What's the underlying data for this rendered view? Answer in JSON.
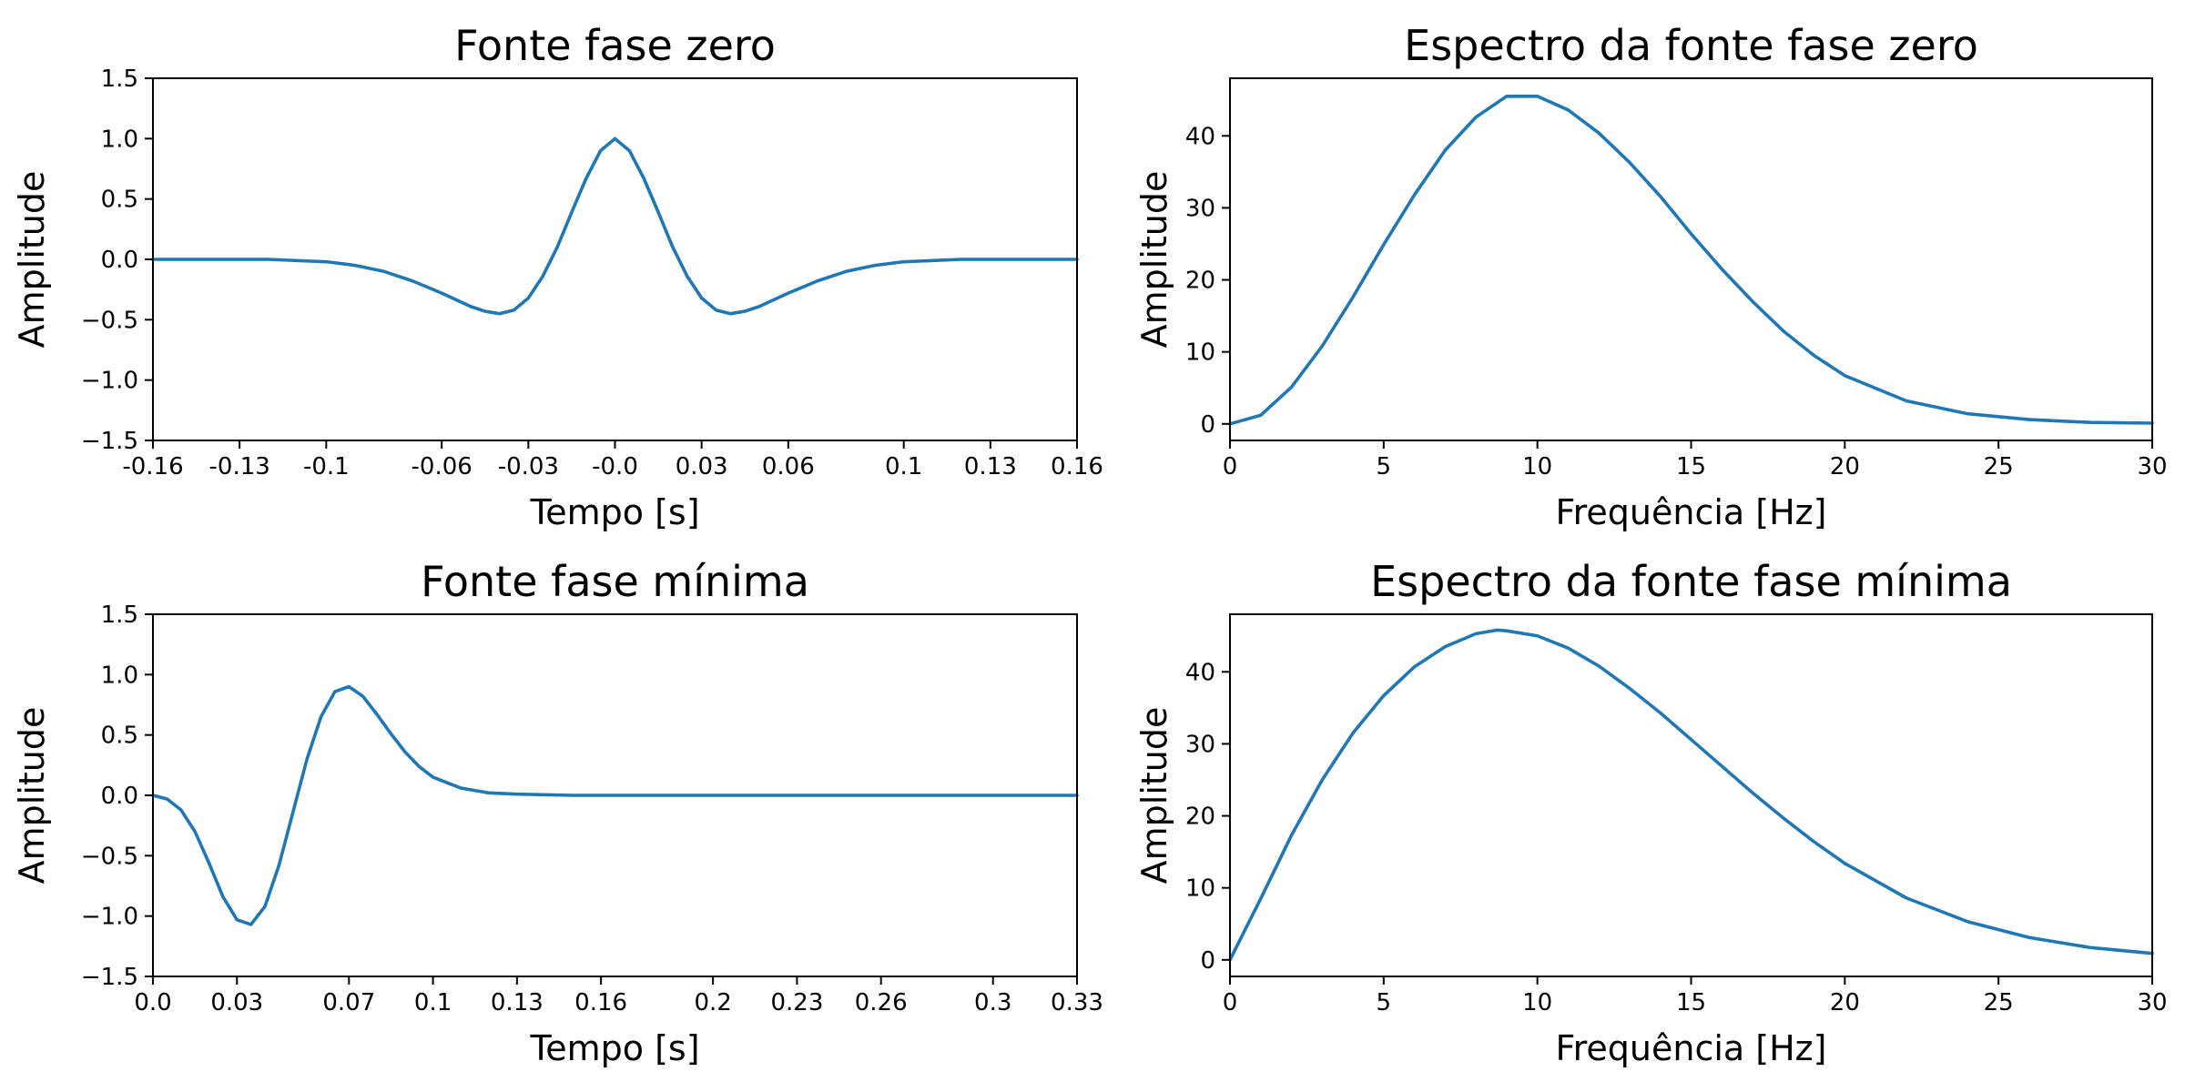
{
  "figure": {
    "line_color": "#1f77b4"
  },
  "chart_data": [
    {
      "type": "line",
      "title": "Fonte fase zero",
      "xlabel": "Tempo [s]",
      "ylabel": "Amplitude",
      "xlim": [
        -0.16,
        0.16
      ],
      "ylim": [
        -1.5,
        1.5
      ],
      "xticks": [
        -0.16,
        -0.13,
        -0.1,
        -0.06,
        -0.03,
        0.0,
        0.03,
        0.06,
        0.1,
        0.13,
        0.16
      ],
      "xtick_labels": [
        "-0.16",
        "-0.13",
        "-0.1",
        "-0.06",
        "-0.03",
        "-0.0",
        "0.03",
        "0.06",
        "0.1",
        "0.13",
        "0.16"
      ],
      "yticks": [
        -1.5,
        -1.0,
        -0.5,
        0.0,
        0.5,
        1.0,
        1.5
      ],
      "ytick_labels": [
        "−1.5",
        "−1.0",
        "−0.5",
        "0.0",
        "0.5",
        "1.0",
        "1.5"
      ],
      "grid": false,
      "series": [
        {
          "x": [
            -0.16,
            -0.12,
            -0.1,
            -0.09,
            -0.08,
            -0.07,
            -0.06,
            -0.05,
            -0.045,
            -0.04,
            -0.035,
            -0.03,
            -0.025,
            -0.02,
            -0.015,
            -0.01,
            -0.005,
            0.0,
            0.005,
            0.01,
            0.015,
            0.02,
            0.025,
            0.03,
            0.035,
            0.04,
            0.045,
            0.05,
            0.06,
            0.07,
            0.08,
            0.09,
            0.1,
            0.12,
            0.16
          ],
          "y": [
            0.0,
            0.0,
            -0.02,
            -0.05,
            -0.1,
            -0.18,
            -0.28,
            -0.39,
            -0.43,
            -0.45,
            -0.42,
            -0.32,
            -0.14,
            0.1,
            0.39,
            0.67,
            0.9,
            1.0,
            0.9,
            0.67,
            0.39,
            0.1,
            -0.14,
            -0.32,
            -0.42,
            -0.45,
            -0.43,
            -0.39,
            -0.28,
            -0.18,
            -0.1,
            -0.05,
            -0.02,
            0.0,
            0.0
          ]
        }
      ]
    },
    {
      "type": "line",
      "title": "Espectro da fonte fase zero",
      "xlabel": "Frequência [Hz]",
      "ylabel": "Amplitude",
      "xlim": [
        0,
        30
      ],
      "ylim": [
        -2.3,
        48
      ],
      "xticks": [
        0,
        5,
        10,
        15,
        20,
        25,
        30
      ],
      "xtick_labels": [
        "0",
        "5",
        "10",
        "15",
        "20",
        "25",
        "30"
      ],
      "yticks": [
        0,
        10,
        20,
        30,
        40
      ],
      "ytick_labels": [
        "0",
        "10",
        "20",
        "30",
        "40"
      ],
      "grid": false,
      "series": [
        {
          "x": [
            0,
            1,
            2,
            3,
            4,
            5,
            6,
            7,
            8,
            9,
            10,
            11,
            12,
            13,
            14,
            15,
            16,
            17,
            18,
            19,
            20,
            22,
            24,
            26,
            28,
            30
          ],
          "y": [
            0.0,
            1.2,
            5.1,
            10.8,
            17.6,
            24.9,
            31.8,
            38.0,
            42.6,
            45.5,
            45.5,
            43.6,
            40.4,
            36.3,
            31.6,
            26.4,
            21.5,
            17.0,
            12.9,
            9.5,
            6.7,
            3.2,
            1.4,
            0.6,
            0.2,
            0.1
          ]
        }
      ]
    },
    {
      "type": "line",
      "title": "Fonte fase mínima",
      "xlabel": "Tempo [s]",
      "ylabel": "Amplitude",
      "xlim": [
        0.0,
        0.33
      ],
      "ylim": [
        -1.5,
        1.5
      ],
      "xticks": [
        0.0,
        0.03,
        0.07,
        0.1,
        0.13,
        0.16,
        0.2,
        0.23,
        0.26,
        0.3,
        0.33
      ],
      "xtick_labels": [
        "0.0",
        "0.03",
        "0.07",
        "0.1",
        "0.13",
        "0.16",
        "0.2",
        "0.23",
        "0.26",
        "0.3",
        "0.33"
      ],
      "yticks": [
        -1.5,
        -1.0,
        -0.5,
        0.0,
        0.5,
        1.0,
        1.5
      ],
      "ytick_labels": [
        "−1.5",
        "−1.0",
        "−0.5",
        "0.0",
        "0.5",
        "1.0",
        "1.5"
      ],
      "grid": false,
      "series": [
        {
          "x": [
            0.0,
            0.005,
            0.01,
            0.015,
            0.02,
            0.025,
            0.03,
            0.035,
            0.04,
            0.045,
            0.05,
            0.055,
            0.06,
            0.065,
            0.07,
            0.075,
            0.08,
            0.085,
            0.09,
            0.095,
            0.1,
            0.11,
            0.12,
            0.13,
            0.15,
            0.2,
            0.25,
            0.3,
            0.33
          ],
          "y": [
            0.0,
            -0.03,
            -0.12,
            -0.3,
            -0.56,
            -0.84,
            -1.03,
            -1.07,
            -0.92,
            -0.58,
            -0.14,
            0.3,
            0.65,
            0.86,
            0.9,
            0.82,
            0.67,
            0.51,
            0.36,
            0.24,
            0.15,
            0.06,
            0.02,
            0.01,
            0.0,
            0.0,
            0.0,
            0.0,
            0.0
          ]
        }
      ]
    },
    {
      "type": "line",
      "title": "Espectro da fonte fase mínima",
      "xlabel": "Frequência [Hz]",
      "ylabel": "Amplitude",
      "xlim": [
        0,
        30
      ],
      "ylim": [
        -2.3,
        48
      ],
      "xticks": [
        0,
        5,
        10,
        15,
        20,
        25,
        30
      ],
      "xtick_labels": [
        "0",
        "5",
        "10",
        "15",
        "20",
        "25",
        "30"
      ],
      "yticks": [
        0,
        10,
        20,
        30,
        40
      ],
      "ytick_labels": [
        "0",
        "10",
        "20",
        "30",
        "40"
      ],
      "grid": false,
      "series": [
        {
          "x": [
            0,
            1,
            2,
            3,
            4,
            5,
            6,
            7,
            8,
            8.7,
            9,
            10,
            11,
            12,
            13,
            14,
            15,
            16,
            17,
            18,
            19,
            20,
            22,
            24,
            26,
            28,
            30
          ],
          "y": [
            0.0,
            8.5,
            17.3,
            25.0,
            31.5,
            36.7,
            40.7,
            43.5,
            45.3,
            45.8,
            45.7,
            45.0,
            43.3,
            40.8,
            37.7,
            34.3,
            30.6,
            26.9,
            23.2,
            19.7,
            16.4,
            13.4,
            8.6,
            5.3,
            3.1,
            1.7,
            0.9
          ]
        }
      ]
    }
  ]
}
